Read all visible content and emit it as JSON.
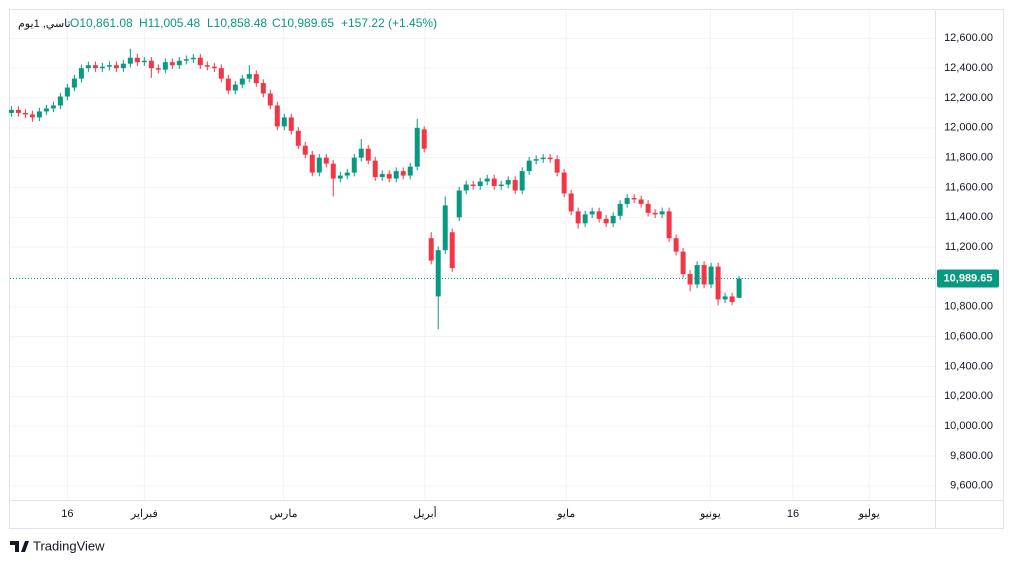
{
  "chart_data": {
    "type": "candlestick",
    "header": {
      "symbol": "تاسي, 1يوم",
      "open": "O10,861.08",
      "high": "H11,005.48",
      "low": "L10,858.48",
      "close": "C10,989.65",
      "change": "+157.22 (+1.45%)"
    },
    "up_color": "#089981",
    "down_color": "#f23645",
    "grid": true,
    "open": [
      12100,
      12120,
      12100,
      12090,
      12070,
      12110,
      12130,
      12150,
      12210,
      12270,
      12330,
      12400,
      12420,
      12400,
      12410,
      12420,
      12400,
      12430,
      12470,
      12440,
      12450,
      12400,
      12390,
      12440,
      12420,
      12450,
      12460,
      12470,
      12420,
      12410,
      12400,
      12330,
      12250,
      12290,
      12330,
      12360,
      12300,
      12230,
      12150,
      12010,
      12070,
      11980,
      11880,
      11820,
      11700,
      11800,
      11760,
      11660,
      11680,
      11700,
      11800,
      11860,
      11780,
      11670,
      11690,
      11660,
      11710,
      11680,
      11740,
      11990,
      11260,
      10870,
      11180,
      11300,
      11400,
      11580,
      11620,
      11610,
      11640,
      11660,
      11610,
      11620,
      11650,
      11580,
      11710,
      11780,
      11790,
      11800,
      11790,
      11700,
      11560,
      11440,
      11360,
      11420,
      11440,
      11390,
      11360,
      11410,
      11490,
      11530,
      11520,
      11490,
      11430,
      11420,
      11440,
      11260,
      11170,
      11020,
      10950,
      11080,
      10950,
      11070,
      10850,
      10870,
      10861.08
    ],
    "high": [
      12145,
      12145,
      12125,
      12115,
      12135,
      12155,
      12175,
      12235,
      12295,
      12355,
      12425,
      12445,
      12445,
      12435,
      12445,
      12445,
      12455,
      12530,
      12495,
      12475,
      12475,
      12425,
      12465,
      12465,
      12475,
      12485,
      12495,
      12495,
      12445,
      12435,
      12425,
      12355,
      12315,
      12355,
      12420,
      12385,
      12325,
      12255,
      12175,
      12095,
      12095,
      12005,
      11905,
      11845,
      11825,
      11825,
      11785,
      11705,
      11725,
      11825,
      11925,
      11885,
      11805,
      11715,
      11715,
      11735,
      11735,
      11765,
      12060,
      12010,
      11300,
      11205,
      11540,
      11325,
      11605,
      11645,
      11645,
      11665,
      11685,
      11685,
      11645,
      11675,
      11675,
      11735,
      11805,
      11815,
      11825,
      11825,
      11815,
      11725,
      11585,
      11465,
      11445,
      11465,
      11465,
      11415,
      11435,
      11515,
      11555,
      11555,
      11545,
      11515,
      11455,
      11465,
      11465,
      11285,
      11195,
      11045,
      11105,
      11105,
      11095,
      11095,
      10895,
      10895,
      11005.48
    ],
    "low": [
      12075,
      12075,
      12065,
      12040,
      12045,
      12085,
      12105,
      12125,
      12185,
      12245,
      12305,
      12375,
      12375,
      12375,
      12385,
      12375,
      12375,
      12405,
      12415,
      12415,
      12335,
      12365,
      12365,
      12395,
      12395,
      12425,
      12435,
      12395,
      12385,
      12375,
      12305,
      12225,
      12225,
      12265,
      12305,
      12275,
      12205,
      12125,
      11985,
      11985,
      11955,
      11855,
      11795,
      11675,
      11675,
      11735,
      11540,
      11635,
      11655,
      11675,
      11775,
      11755,
      11645,
      11645,
      11635,
      11635,
      11655,
      11655,
      11715,
      11835,
      11085,
      10650,
      11155,
      11035,
      11375,
      11555,
      11585,
      11585,
      11615,
      11585,
      11585,
      11595,
      11555,
      11555,
      11685,
      11755,
      11765,
      11765,
      11675,
      11535,
      11415,
      11325,
      11335,
      11395,
      11365,
      11335,
      11335,
      11385,
      11465,
      11495,
      11465,
      11405,
      11395,
      11395,
      11235,
      11145,
      10995,
      10905,
      10925,
      10925,
      10925,
      10810,
      10825,
      10810,
      10858.48
    ],
    "close": [
      12120,
      12100,
      12090,
      12070,
      12110,
      12130,
      12150,
      12210,
      12270,
      12330,
      12400,
      12420,
      12400,
      12410,
      12420,
      12400,
      12430,
      12470,
      12440,
      12450,
      12400,
      12390,
      12440,
      12420,
      12450,
      12460,
      12470,
      12420,
      12410,
      12400,
      12330,
      12250,
      12290,
      12330,
      12360,
      12300,
      12230,
      12150,
      12010,
      12070,
      11980,
      11880,
      11820,
      11700,
      11800,
      11760,
      11660,
      11680,
      11700,
      11800,
      11860,
      11780,
      11670,
      11690,
      11660,
      11710,
      11680,
      11740,
      12000,
      11860,
      11110,
      11180,
      11480,
      11060,
      11580,
      11620,
      11610,
      11640,
      11660,
      11610,
      11620,
      11650,
      11580,
      11710,
      11780,
      11790,
      11800,
      11790,
      11700,
      11560,
      11440,
      11360,
      11420,
      11440,
      11390,
      11360,
      11410,
      11490,
      11530,
      11520,
      11490,
      11430,
      11420,
      11440,
      11260,
      11170,
      11020,
      10950,
      11080,
      10950,
      11070,
      10850,
      10870,
      10832.43,
      10989.65
    ],
    "last_price": {
      "value": 10989.65,
      "label": "10,989.65"
    },
    "xlim": [
      -0.2,
      132
    ],
    "ylim": [
      9505,
      12790
    ],
    "xticks": [
      {
        "value": 8,
        "label": "16"
      },
      {
        "value": 19,
        "label": "فبراير"
      },
      {
        "value": 38.9,
        "label": "مارس"
      },
      {
        "value": 59.1,
        "label": "أبريل"
      },
      {
        "value": 79.3,
        "label": "مايو"
      },
      {
        "value": 99.9,
        "label": "يونيو"
      },
      {
        "value": 111.7,
        "label": "16"
      },
      {
        "value": 122.6,
        "label": "يوليو"
      }
    ],
    "yticks": [
      {
        "value": 9600,
        "label": "9,600.00"
      },
      {
        "value": 9800,
        "label": "9,800.00"
      },
      {
        "value": 10000,
        "label": "10,000.00"
      },
      {
        "value": 10200,
        "label": "10,200.00"
      },
      {
        "value": 10400,
        "label": "10,400.00"
      },
      {
        "value": 10600,
        "label": "10,600.00"
      },
      {
        "value": 10800,
        "label": "10,800.00"
      },
      {
        "value": 11000,
        "label": "11,000.00"
      },
      {
        "value": 11200,
        "label": "11,200.00"
      },
      {
        "value": 11400,
        "label": "11,400.00"
      },
      {
        "value": 11600,
        "label": "11,600.00"
      },
      {
        "value": 11800,
        "label": "11,800.00"
      },
      {
        "value": 12000,
        "label": "12,000.00"
      },
      {
        "value": 12200,
        "label": "12,200.00"
      },
      {
        "value": 12400,
        "label": "12,400.00"
      },
      {
        "value": 12600,
        "label": "12,600.00"
      }
    ],
    "brand": "TradingView"
  }
}
